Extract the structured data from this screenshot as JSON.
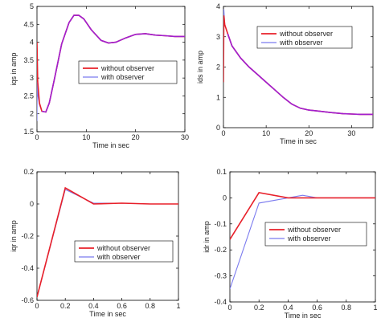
{
  "colors": {
    "without": "#e8202a",
    "with": "#7b7bef",
    "overlap": "#a020d0"
  },
  "chart_data": [
    {
      "type": "line",
      "xlabel": "Time in sec",
      "ylabel": "iqs in amp",
      "xlim": [
        0,
        30
      ],
      "ylim": [
        1.5,
        5
      ],
      "xticks": [
        0,
        10,
        20,
        30
      ],
      "yticks": [
        1.5,
        2,
        2.5,
        3,
        3.5,
        4,
        4.5,
        5
      ],
      "ytick_labels": [
        "1.5",
        "2",
        "2.5",
        "3",
        "3.5",
        "4",
        "4.5",
        "5"
      ],
      "legend_position": "center-right",
      "series": [
        {
          "name": "without observer",
          "x": [
            0,
            0,
            0.15,
            0.5,
            1,
            1.8,
            2.5,
            3.5,
            5,
            6.5,
            7.5,
            8.5,
            9.5,
            11,
            13,
            14.5,
            16,
            18,
            20,
            22,
            24,
            26,
            28,
            30
          ],
          "y": [
            3.05,
            4.0,
            2.9,
            2.3,
            2.07,
            2.05,
            2.3,
            2.95,
            3.95,
            4.55,
            4.75,
            4.75,
            4.65,
            4.35,
            4.05,
            3.98,
            4.0,
            4.12,
            4.22,
            4.24,
            4.2,
            4.18,
            4.16,
            4.16
          ]
        },
        {
          "name": "with observer",
          "x": [
            0,
            0.05,
            0.2,
            0.5,
            1,
            1.8,
            2.5,
            3.5,
            5,
            6.5,
            7.5,
            8.5,
            9.5,
            11,
            13,
            14.5,
            16,
            18,
            20,
            22,
            24,
            26,
            28,
            30
          ],
          "y": [
            1.8,
            2.9,
            2.5,
            2.25,
            2.07,
            2.05,
            2.3,
            2.95,
            3.95,
            4.55,
            4.75,
            4.75,
            4.65,
            4.35,
            4.05,
            3.98,
            4.0,
            4.12,
            4.22,
            4.24,
            4.2,
            4.18,
            4.16,
            4.16
          ]
        }
      ]
    },
    {
      "type": "line",
      "xlabel": "Time in sec",
      "ylabel": "ids in amp",
      "xlim": [
        0,
        35
      ],
      "ylim": [
        0,
        4
      ],
      "xticks": [
        0,
        10,
        20,
        30
      ],
      "yticks": [
        0,
        1,
        2,
        3,
        4
      ],
      "ytick_labels": [
        "0",
        "1",
        "2",
        "3",
        "4"
      ],
      "legend_position": "top-right",
      "series": [
        {
          "name": "without observer",
          "x": [
            0,
            0.1,
            0.3,
            1,
            2,
            4,
            6,
            8,
            10,
            12,
            14,
            16,
            18,
            20,
            22,
            25,
            28,
            30,
            32,
            35
          ],
          "y": [
            1.5,
            3.7,
            3.4,
            3.1,
            2.7,
            2.3,
            2.0,
            1.75,
            1.5,
            1.25,
            1.0,
            0.78,
            0.64,
            0.58,
            0.55,
            0.5,
            0.46,
            0.45,
            0.44,
            0.44
          ]
        },
        {
          "name": "with observer",
          "x": [
            0,
            0.1,
            0.3,
            1,
            2,
            4,
            6,
            8,
            10,
            12,
            14,
            16,
            18,
            20,
            22,
            25,
            28,
            30,
            32,
            35
          ],
          "y": [
            3.0,
            3.9,
            3.4,
            3.1,
            2.7,
            2.3,
            2.0,
            1.75,
            1.5,
            1.25,
            1.0,
            0.78,
            0.64,
            0.58,
            0.55,
            0.5,
            0.46,
            0.45,
            0.44,
            0.44
          ]
        }
      ]
    },
    {
      "type": "line",
      "xlabel": "Time in sec",
      "ylabel": "iqr in amp",
      "xlim": [
        0,
        1
      ],
      "ylim": [
        -0.6,
        0.2
      ],
      "xticks": [
        0,
        0.2,
        0.4,
        0.6,
        0.8,
        1
      ],
      "yticks": [
        -0.6,
        -0.4,
        -0.2,
        0,
        0.2
      ],
      "ytick_labels": [
        "-0.6",
        "-0.4",
        "-0.2",
        "0",
        "0.2"
      ],
      "legend_position": "bottom-right",
      "series": [
        {
          "name": "without observer",
          "x": [
            0,
            0.2,
            0.4,
            0.6,
            0.8,
            1.0
          ],
          "y": [
            -0.58,
            0.1,
            0.0,
            0.005,
            0.0,
            0.0
          ]
        },
        {
          "name": "with observer",
          "x": [
            0,
            0.2,
            0.4,
            0.6,
            0.8,
            1.0
          ],
          "y": [
            -0.58,
            0.09,
            0.005,
            0.005,
            0.0,
            0.0
          ]
        }
      ]
    },
    {
      "type": "line",
      "xlabel": "Time in sec",
      "ylabel": "idr in amp",
      "xlim": [
        0,
        1
      ],
      "ylim": [
        -0.4,
        0.1
      ],
      "xticks": [
        0,
        0.2,
        0.4,
        0.6,
        0.8,
        1
      ],
      "yticks": [
        -0.4,
        -0.3,
        -0.2,
        -0.1,
        0,
        0.1
      ],
      "ytick_labels": [
        "-0.4",
        "-0.3",
        "-0.2",
        "-0.1",
        "0",
        "0.1"
      ],
      "legend_position": "bottom-right",
      "series": [
        {
          "name": "without observer",
          "x": [
            0,
            0.2,
            0.4,
            0.6,
            0.8,
            1.0
          ],
          "y": [
            -0.16,
            0.02,
            0.0,
            0.0,
            0.0,
            0.0
          ]
        },
        {
          "name": "with observer",
          "x": [
            0,
            0.2,
            0.4,
            0.5,
            0.6,
            0.8,
            1.0
          ],
          "y": [
            -0.35,
            -0.02,
            0.0,
            0.01,
            0.0,
            0.0,
            0.0
          ]
        }
      ]
    }
  ]
}
